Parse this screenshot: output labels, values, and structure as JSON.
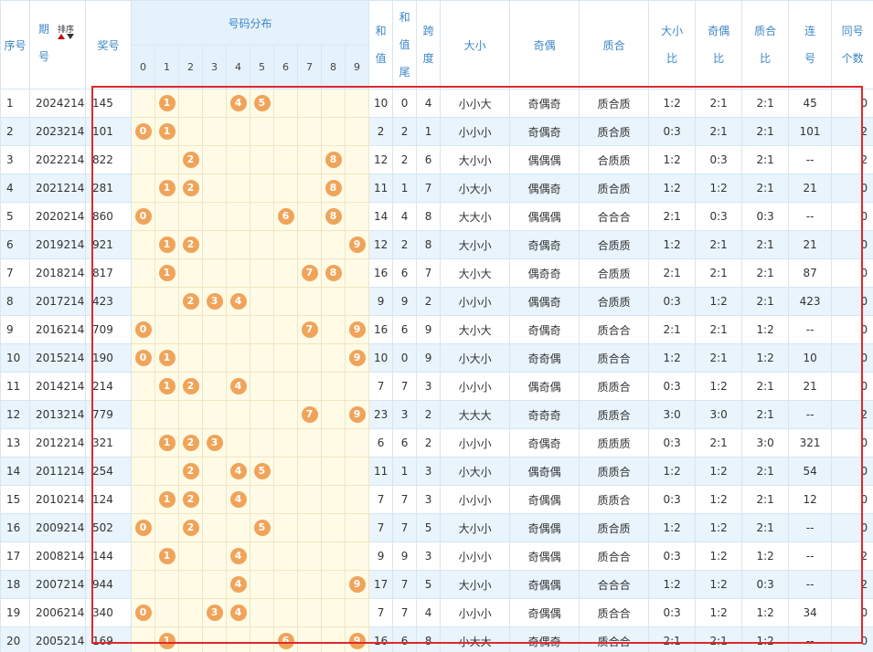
{
  "header": {
    "seq": "序号",
    "period_top": "期",
    "period_bottom": "号",
    "sort_label": "排序",
    "prize": "奖号",
    "distribution": "号码分布",
    "digits": [
      "0",
      "1",
      "2",
      "3",
      "4",
      "5",
      "6",
      "7",
      "8",
      "9"
    ],
    "sum_a": "和",
    "sum_b": "值",
    "tail_a": "和",
    "tail_b": "值",
    "tail_c": "尾",
    "span_a": "跨",
    "span_b": "度",
    "size": "大小",
    "parity": "奇偶",
    "prime": "质合",
    "size_ratio_a": "大小",
    "size_ratio_b": "比",
    "parity_ratio_a": "奇偶",
    "parity_ratio_b": "比",
    "prime_ratio_a": "质合",
    "prime_ratio_b": "比",
    "consec_a": "连",
    "consec_b": "号",
    "same_a": "同号",
    "same_b": "个数"
  },
  "rows": [
    {
      "seq": "1",
      "period": "2024214",
      "prize": "145",
      "balls": [
        1,
        4,
        5
      ],
      "sum": "10",
      "tail": "0",
      "span": "4",
      "size": "小小大",
      "parity": "奇偶奇",
      "prime": "质合质",
      "size_ratio": "1:2",
      "parity_ratio": "2:1",
      "prime_ratio": "2:1",
      "consec": "45",
      "same": "0"
    },
    {
      "seq": "2",
      "period": "2023214",
      "prize": "101",
      "balls": [
        0,
        1
      ],
      "sum": "2",
      "tail": "2",
      "span": "1",
      "size": "小小小",
      "parity": "奇偶奇",
      "prime": "质合质",
      "size_ratio": "0:3",
      "parity_ratio": "2:1",
      "prime_ratio": "2:1",
      "consec": "101",
      "same": "2"
    },
    {
      "seq": "3",
      "period": "2022214",
      "prize": "822",
      "balls": [
        2,
        8
      ],
      "sum": "12",
      "tail": "2",
      "span": "6",
      "size": "大小小",
      "parity": "偶偶偶",
      "prime": "合质质",
      "size_ratio": "1:2",
      "parity_ratio": "0:3",
      "prime_ratio": "2:1",
      "consec": "--",
      "same": "2"
    },
    {
      "seq": "4",
      "period": "2021214",
      "prize": "281",
      "balls": [
        1,
        2,
        8
      ],
      "sum": "11",
      "tail": "1",
      "span": "7",
      "size": "小大小",
      "parity": "偶偶奇",
      "prime": "质合质",
      "size_ratio": "1:2",
      "parity_ratio": "1:2",
      "prime_ratio": "2:1",
      "consec": "21",
      "same": "0"
    },
    {
      "seq": "5",
      "period": "2020214",
      "prize": "860",
      "balls": [
        0,
        6,
        8
      ],
      "sum": "14",
      "tail": "4",
      "span": "8",
      "size": "大大小",
      "parity": "偶偶偶",
      "prime": "合合合",
      "size_ratio": "2:1",
      "parity_ratio": "0:3",
      "prime_ratio": "0:3",
      "consec": "--",
      "same": "0"
    },
    {
      "seq": "6",
      "period": "2019214",
      "prize": "921",
      "balls": [
        1,
        2,
        9
      ],
      "sum": "12",
      "tail": "2",
      "span": "8",
      "size": "大小小",
      "parity": "奇偶奇",
      "prime": "合质质",
      "size_ratio": "1:2",
      "parity_ratio": "2:1",
      "prime_ratio": "2:1",
      "consec": "21",
      "same": "0"
    },
    {
      "seq": "7",
      "period": "2018214",
      "prize": "817",
      "balls": [
        1,
        7,
        8
      ],
      "sum": "16",
      "tail": "6",
      "span": "7",
      "size": "大小大",
      "parity": "偶奇奇",
      "prime": "合质质",
      "size_ratio": "2:1",
      "parity_ratio": "2:1",
      "prime_ratio": "2:1",
      "consec": "87",
      "same": "0"
    },
    {
      "seq": "8",
      "period": "2017214",
      "prize": "423",
      "balls": [
        2,
        3,
        4
      ],
      "sum": "9",
      "tail": "9",
      "span": "2",
      "size": "小小小",
      "parity": "偶偶奇",
      "prime": "合质质",
      "size_ratio": "0:3",
      "parity_ratio": "1:2",
      "prime_ratio": "2:1",
      "consec": "423",
      "same": "0"
    },
    {
      "seq": "9",
      "period": "2016214",
      "prize": "709",
      "balls": [
        0,
        7,
        9
      ],
      "sum": "16",
      "tail": "6",
      "span": "9",
      "size": "大小大",
      "parity": "奇偶奇",
      "prime": "质合合",
      "size_ratio": "2:1",
      "parity_ratio": "2:1",
      "prime_ratio": "1:2",
      "consec": "--",
      "same": "0"
    },
    {
      "seq": "10",
      "period": "2015214",
      "prize": "190",
      "balls": [
        0,
        1,
        9
      ],
      "sum": "10",
      "tail": "0",
      "span": "9",
      "size": "小大小",
      "parity": "奇奇偶",
      "prime": "质合合",
      "size_ratio": "1:2",
      "parity_ratio": "2:1",
      "prime_ratio": "1:2",
      "consec": "10",
      "same": "0"
    },
    {
      "seq": "11",
      "period": "2014214",
      "prize": "214",
      "balls": [
        1,
        2,
        4
      ],
      "sum": "7",
      "tail": "7",
      "span": "3",
      "size": "小小小",
      "parity": "偶奇偶",
      "prime": "质质合",
      "size_ratio": "0:3",
      "parity_ratio": "1:2",
      "prime_ratio": "2:1",
      "consec": "21",
      "same": "0"
    },
    {
      "seq": "12",
      "period": "2013214",
      "prize": "779",
      "balls": [
        7,
        9
      ],
      "sum": "23",
      "tail": "3",
      "span": "2",
      "size": "大大大",
      "parity": "奇奇奇",
      "prime": "质质合",
      "size_ratio": "3:0",
      "parity_ratio": "3:0",
      "prime_ratio": "2:1",
      "consec": "--",
      "same": "2"
    },
    {
      "seq": "13",
      "period": "2012214",
      "prize": "321",
      "balls": [
        1,
        2,
        3
      ],
      "sum": "6",
      "tail": "6",
      "span": "2",
      "size": "小小小",
      "parity": "奇偶奇",
      "prime": "质质质",
      "size_ratio": "0:3",
      "parity_ratio": "2:1",
      "prime_ratio": "3:0",
      "consec": "321",
      "same": "0"
    },
    {
      "seq": "14",
      "period": "2011214",
      "prize": "254",
      "balls": [
        2,
        4,
        5
      ],
      "sum": "11",
      "tail": "1",
      "span": "3",
      "size": "小大小",
      "parity": "偶奇偶",
      "prime": "质质合",
      "size_ratio": "1:2",
      "parity_ratio": "1:2",
      "prime_ratio": "2:1",
      "consec": "54",
      "same": "0"
    },
    {
      "seq": "15",
      "period": "2010214",
      "prize": "124",
      "balls": [
        1,
        2,
        4
      ],
      "sum": "7",
      "tail": "7",
      "span": "3",
      "size": "小小小",
      "parity": "奇偶偶",
      "prime": "质质合",
      "size_ratio": "0:3",
      "parity_ratio": "1:2",
      "prime_ratio": "2:1",
      "consec": "12",
      "same": "0"
    },
    {
      "seq": "16",
      "period": "2009214",
      "prize": "502",
      "balls": [
        0,
        2,
        5
      ],
      "sum": "7",
      "tail": "7",
      "span": "5",
      "size": "大小小",
      "parity": "奇偶偶",
      "prime": "质合质",
      "size_ratio": "1:2",
      "parity_ratio": "1:2",
      "prime_ratio": "2:1",
      "consec": "--",
      "same": "0"
    },
    {
      "seq": "17",
      "period": "2008214",
      "prize": "144",
      "balls": [
        1,
        4
      ],
      "sum": "9",
      "tail": "9",
      "span": "3",
      "size": "小小小",
      "parity": "奇偶偶",
      "prime": "质合合",
      "size_ratio": "0:3",
      "parity_ratio": "1:2",
      "prime_ratio": "1:2",
      "consec": "--",
      "same": "2"
    },
    {
      "seq": "18",
      "period": "2007214",
      "prize": "944",
      "balls": [
        4,
        9
      ],
      "sum": "17",
      "tail": "7",
      "span": "5",
      "size": "大小小",
      "parity": "奇偶偶",
      "prime": "合合合",
      "size_ratio": "1:2",
      "parity_ratio": "1:2",
      "prime_ratio": "0:3",
      "consec": "--",
      "same": "2"
    },
    {
      "seq": "19",
      "period": "2006214",
      "prize": "340",
      "balls": [
        0,
        3,
        4
      ],
      "sum": "7",
      "tail": "7",
      "span": "4",
      "size": "小小小",
      "parity": "奇偶偶",
      "prime": "质合合",
      "size_ratio": "0:3",
      "parity_ratio": "1:2",
      "prime_ratio": "1:2",
      "consec": "34",
      "same": "0"
    },
    {
      "seq": "20",
      "period": "2005214",
      "prize": "169",
      "balls": [
        1,
        6,
        9
      ],
      "sum": "16",
      "tail": "6",
      "span": "8",
      "size": "小大大",
      "parity": "奇偶奇",
      "prime": "质合合",
      "size_ratio": "2:1",
      "parity_ratio": "2:1",
      "prime_ratio": "1:2",
      "consec": "--",
      "same": "0"
    }
  ],
  "colors": {
    "header_text": "#3d86c6",
    "ball": "#f0a45a",
    "distribution_bg": "#fffbe6",
    "row_alt_bg": "#e9f4fc",
    "highlight_border": "#e0282c"
  }
}
